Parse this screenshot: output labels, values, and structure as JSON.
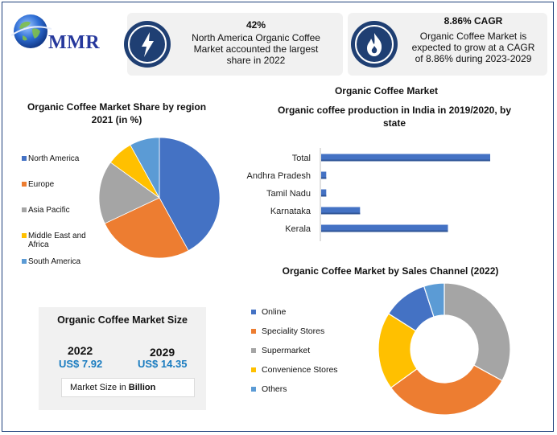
{
  "logo": {
    "text": "MMR"
  },
  "stats": [
    {
      "headline": "42%",
      "body": [
        "North America Organic Coffee",
        "Market accounted the largest",
        "share in 2022"
      ],
      "icon": "lightning-icon"
    },
    {
      "headline": "8.86% CAGR",
      "body": [
        "Organic Coffee Market is",
        "expected to grow at a CAGR",
        "of 8.86% during 2023-2029"
      ],
      "icon": "flame-icon"
    }
  ],
  "header_label": "Organic Coffee Market",
  "colors": {
    "navy": "#1f3f73",
    "blue": "#4472c4",
    "orange": "#ed7d31",
    "gray": "#a5a5a5",
    "yellow": "#ffc000",
    "light_blue": "#5b9bd5",
    "usd": "#1a7cc0"
  },
  "market_size": {
    "title": "Organic Coffee Market Size",
    "year_a": "2022",
    "value_a": "US$ 7.92",
    "year_b": "2029",
    "value_b": "US$ 14.35",
    "note_prefix": "Market Size in ",
    "note_unit": "Billion"
  },
  "chart_data": [
    {
      "type": "pie",
      "title": [
        "Organic Coffee Market Share by region",
        "2021 (in %)"
      ],
      "categories": [
        "North America",
        "Europe",
        "Asia Pacific",
        "Middle East and Africa",
        "South America"
      ],
      "legend_lines": [
        [
          "North America"
        ],
        [
          "Europe"
        ],
        [
          "Asia Pacific"
        ],
        [
          "Middle East and",
          "Africa"
        ],
        [
          "South America"
        ]
      ],
      "values": [
        42,
        26,
        17,
        7,
        8
      ],
      "colors": [
        "#4472c4",
        "#ed7d31",
        "#a5a5a5",
        "#ffc000",
        "#5b9bd5"
      ],
      "legend": "left"
    },
    {
      "type": "bar",
      "orientation": "horizontal",
      "title": [
        "Organic coffee production in India in 2019/2020, by",
        "state"
      ],
      "categories": [
        "Total",
        "Andhra Pradesh",
        "Tamil Nadu",
        "Karnataka",
        "Kerala"
      ],
      "values": [
        100,
        3,
        3,
        23,
        75
      ],
      "xlim": [
        0,
        100
      ],
      "color": "#4472c4",
      "grid": false
    },
    {
      "type": "pie",
      "variant": "donut",
      "title": [
        "Organic Coffee Market by Sales Channel (2022)"
      ],
      "categories": [
        "Online",
        "Speciality Stores",
        "Supermarket",
        "Convenience Stores",
        "Others"
      ],
      "values": [
        11,
        32,
        33,
        19,
        5
      ],
      "start_order": [
        "Supermarket",
        "Speciality Stores",
        "Convenience Stores",
        "Online",
        "Others"
      ],
      "colors": [
        "#4472c4",
        "#ed7d31",
        "#a5a5a5",
        "#ffc000",
        "#5b9bd5"
      ],
      "legend": "left"
    }
  ]
}
